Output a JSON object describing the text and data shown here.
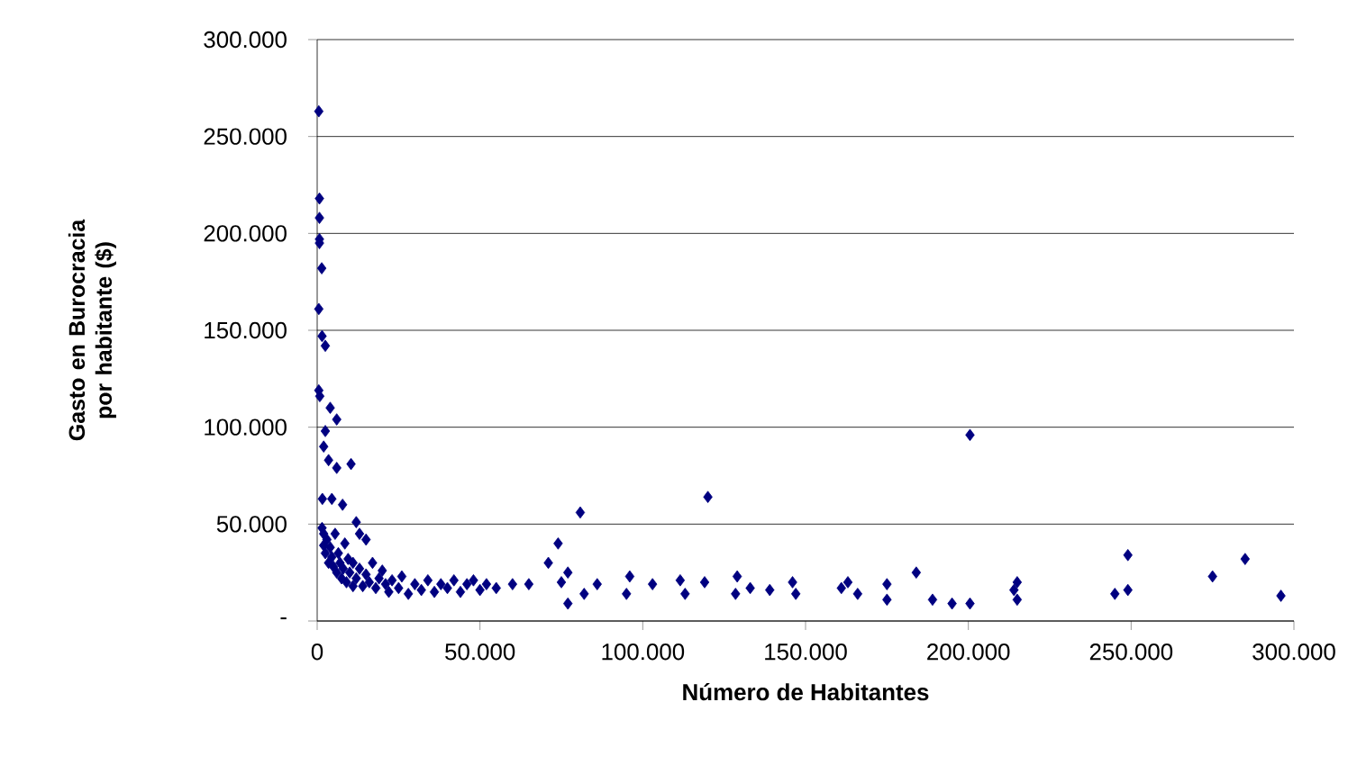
{
  "chart_data": {
    "type": "scatter",
    "xlabel": "Número de Habitantes",
    "ylabel": "Gasto en Burocracia por habitante ($)",
    "xlim": [
      0,
      300000
    ],
    "ylim": [
      0,
      300000
    ],
    "xticks": [
      0,
      {
        "value": 50000,
        "label": "50.000"
      },
      {
        "value": 100000,
        "label": "100.000"
      },
      {
        "value": 150000,
        "label": "150.000"
      },
      {
        "value": 200000,
        "label": "200.000"
      },
      {
        "value": 250000,
        "label": "250.000"
      },
      {
        "value": 300000,
        "label": "300.000"
      }
    ],
    "yticks": [
      {
        "value": 0,
        "label": "-"
      },
      {
        "value": 50000,
        "label": "50.000"
      },
      {
        "value": 100000,
        "label": "100.000"
      },
      {
        "value": 150000,
        "label": "150.000"
      },
      {
        "value": 200000,
        "label": "200.000"
      },
      {
        "value": 250000,
        "label": "250.000"
      },
      {
        "value": 300000,
        "label": "300.000"
      }
    ],
    "grid": "y",
    "marker": "diamond",
    "series": [
      {
        "color": "#000080",
        "x": [
          500,
          700,
          700,
          700,
          700,
          1400,
          500,
          1500,
          2500,
          500,
          800,
          4000,
          6000,
          2500,
          2000,
          3500,
          6000,
          10400,
          1600,
          4500,
          7800,
          12000,
          15000,
          13000,
          2000,
          1500,
          2000,
          3000,
          2500,
          3500,
          4000,
          4500,
          5000,
          5500,
          6000,
          6500,
          7000,
          7500,
          8000,
          8500,
          9000,
          9500,
          10000,
          11000,
          11000,
          12000,
          13000,
          14000,
          15000,
          16000,
          17000,
          18000,
          19000,
          20000,
          21000,
          22000,
          23000,
          25000,
          26000,
          28000,
          30000,
          32000,
          34000,
          36000,
          38000,
          40000,
          42000,
          44000,
          46000,
          48000,
          50000,
          52000,
          55000,
          80800,
          120000,
          74000,
          71000,
          77000,
          75000,
          77000,
          82000,
          86000,
          60000,
          65000,
          96000,
          95000,
          103000,
          111500,
          113000,
          119000,
          129000,
          128500,
          133000,
          139000,
          146000,
          147000,
          161000,
          163000,
          166000,
          175000,
          175000,
          184000,
          189000,
          195000,
          200500,
          215000,
          214000,
          215000,
          249000,
          245000,
          249000,
          275000,
          285000,
          296000,
          200500
        ],
        "values": [
          263000,
          218000,
          208000,
          197000,
          195000,
          182000,
          161000,
          147000,
          142000,
          119000,
          116000,
          110000,
          104000,
          98000,
          90000,
          83000,
          79000,
          81000,
          63000,
          63000,
          60000,
          51000,
          42000,
          45000,
          39000,
          48000,
          45000,
          42000,
          35000,
          30000,
          38000,
          33000,
          28000,
          45000,
          25000,
          35000,
          30000,
          22000,
          27000,
          40000,
          20000,
          32000,
          25000,
          18000,
          30000,
          22000,
          27000,
          18000,
          24000,
          20000,
          30000,
          17000,
          22000,
          26000,
          19000,
          15000,
          21000,
          17000,
          23000,
          14000,
          19000,
          16000,
          21000,
          15000,
          19000,
          17000,
          21000,
          15000,
          19000,
          21000,
          16000,
          19000,
          17000,
          56000,
          64000,
          40000,
          30000,
          25000,
          20000,
          9000,
          14000,
          19000,
          19000,
          19000,
          23000,
          14000,
          19000,
          21000,
          14000,
          20000,
          23000,
          14000,
          17000,
          16000,
          20000,
          14000,
          17000,
          20000,
          14000,
          19000,
          11000,
          25000,
          11000,
          9000,
          9000,
          20000,
          16000,
          11000,
          34000,
          14000,
          16000,
          23000,
          32000,
          13000,
          96000
        ]
      }
    ]
  }
}
